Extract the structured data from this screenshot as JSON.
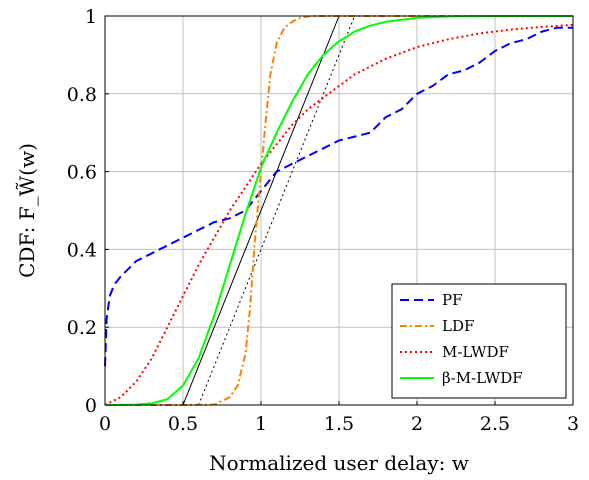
{
  "chart_data": {
    "type": "line",
    "title": "",
    "xlabel": "Normalized user delay: w",
    "ylabel": "CDF: F_W̃(w)",
    "xlim": [
      0,
      3
    ],
    "ylim": [
      0,
      1
    ],
    "xticks": [
      "0",
      "0.5",
      "1",
      "1.5",
      "2",
      "2.5",
      "3"
    ],
    "yticks": [
      "0",
      "0.2",
      "0.4",
      "0.6",
      "0.8",
      "1"
    ],
    "grid": true,
    "legend_position": "bottom-right",
    "series": [
      {
        "name": "PF",
        "color": "#0000ff",
        "style": "dashed",
        "x": [
          0,
          0.01,
          0.03,
          0.06,
          0.1,
          0.15,
          0.2,
          0.3,
          0.4,
          0.5,
          0.6,
          0.7,
          0.8,
          0.9,
          1.0,
          1.1,
          1.2,
          1.3,
          1.4,
          1.5,
          1.6,
          1.7,
          1.75,
          1.8,
          1.85,
          1.9,
          2.0,
          2.1,
          2.2,
          2.3,
          2.4,
          2.5,
          2.6,
          2.7,
          2.8,
          2.9,
          3.0
        ],
        "values": [
          0.1,
          0.22,
          0.28,
          0.31,
          0.33,
          0.35,
          0.37,
          0.39,
          0.41,
          0.43,
          0.45,
          0.47,
          0.48,
          0.5,
          0.55,
          0.6,
          0.62,
          0.64,
          0.66,
          0.68,
          0.69,
          0.7,
          0.72,
          0.74,
          0.75,
          0.76,
          0.8,
          0.82,
          0.85,
          0.86,
          0.88,
          0.91,
          0.93,
          0.94,
          0.96,
          0.97,
          0.97
        ]
      },
      {
        "name": "LDF",
        "color": "#ff8000",
        "style": "dash-dot",
        "x": [
          0,
          0.5,
          0.7,
          0.8,
          0.85,
          0.9,
          0.93,
          0.96,
          1.0,
          1.03,
          1.06,
          1.1,
          1.15,
          1.2,
          1.25,
          1.3,
          1.35,
          1.4,
          1.5,
          3.0
        ],
        "values": [
          0,
          0,
          0.001,
          0.02,
          0.05,
          0.13,
          0.25,
          0.42,
          0.6,
          0.73,
          0.85,
          0.93,
          0.97,
          0.985,
          0.995,
          0.999,
          1.0,
          1.0,
          1.0,
          1.0
        ]
      },
      {
        "name": "M-LWDF",
        "color": "#ff0000",
        "style": "dotted",
        "x": [
          0,
          0.1,
          0.2,
          0.3,
          0.4,
          0.5,
          0.6,
          0.7,
          0.8,
          0.9,
          1.0,
          1.1,
          1.2,
          1.3,
          1.4,
          1.5,
          1.6,
          1.7,
          1.8,
          2.0,
          2.2,
          2.4,
          2.6,
          2.8,
          3.0
        ],
        "values": [
          0.0,
          0.02,
          0.06,
          0.12,
          0.2,
          0.28,
          0.36,
          0.43,
          0.5,
          0.56,
          0.62,
          0.67,
          0.72,
          0.76,
          0.79,
          0.82,
          0.85,
          0.87,
          0.89,
          0.92,
          0.94,
          0.955,
          0.965,
          0.972,
          0.977
        ]
      },
      {
        "name": "β-M-LWDF",
        "color": "#00ff00",
        "style": "solid",
        "x": [
          0,
          0.2,
          0.3,
          0.4,
          0.5,
          0.6,
          0.7,
          0.8,
          0.9,
          1.0,
          1.1,
          1.2,
          1.3,
          1.4,
          1.5,
          1.6,
          1.7,
          1.8,
          2.0,
          2.2,
          2.5,
          3.0
        ],
        "values": [
          0,
          0.001,
          0.004,
          0.015,
          0.05,
          0.12,
          0.23,
          0.36,
          0.49,
          0.61,
          0.7,
          0.78,
          0.85,
          0.9,
          0.935,
          0.96,
          0.975,
          0.985,
          0.995,
          0.999,
          1.0,
          1.0
        ]
      }
    ],
    "reference_lines": [
      {
        "color": "#000000",
        "style": "solid",
        "x": [
          0.5,
          1.5
        ],
        "values": [
          0,
          1
        ]
      },
      {
        "color": "#000000",
        "style": "dotted",
        "x": [
          0.6,
          1.6
        ],
        "values": [
          0,
          1
        ]
      }
    ]
  }
}
